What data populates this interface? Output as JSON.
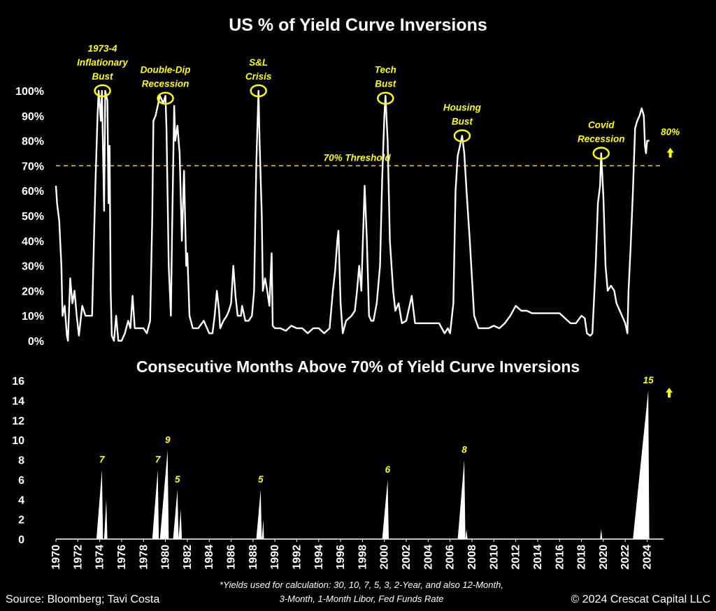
{
  "chart_data": [
    {
      "type": "line",
      "title": "US % of Yield Curve Inversions",
      "ylim": [
        0,
        100
      ],
      "yticks": [
        "0%",
        "10%",
        "20%",
        "30%",
        "40%",
        "50%",
        "60%",
        "70%",
        "80%",
        "90%",
        "100%"
      ],
      "xlim": [
        1970,
        2025.5
      ],
      "threshold": {
        "value": 70,
        "label": "70% Threshold"
      },
      "latest_label": "80%",
      "series": [
        {
          "color": "#ffffff",
          "points": [
            [
              1970.0,
              62
            ],
            [
              1970.1,
              55
            ],
            [
              1970.3,
              48
            ],
            [
              1970.5,
              30
            ],
            [
              1970.6,
              10
            ],
            [
              1970.8,
              14
            ],
            [
              1971.0,
              2
            ],
            [
              1971.1,
              0
            ],
            [
              1971.3,
              25
            ],
            [
              1971.5,
              15
            ],
            [
              1971.7,
              20
            ],
            [
              1971.9,
              10
            ],
            [
              1972.1,
              2
            ],
            [
              1972.4,
              14
            ],
            [
              1972.7,
              10
            ],
            [
              1973.0,
              10
            ],
            [
              1973.3,
              10
            ],
            [
              1973.5,
              45
            ],
            [
              1973.6,
              62
            ],
            [
              1973.8,
              90
            ],
            [
              1973.9,
              100
            ],
            [
              1974.1,
              88
            ],
            [
              1974.2,
              100
            ],
            [
              1974.4,
              52
            ],
            [
              1974.5,
              100
            ],
            [
              1974.7,
              96
            ],
            [
              1974.8,
              55
            ],
            [
              1974.9,
              78
            ],
            [
              1975.0,
              20
            ],
            [
              1975.1,
              2
            ],
            [
              1975.3,
              0
            ],
            [
              1975.5,
              10
            ],
            [
              1975.7,
              0
            ],
            [
              1976.0,
              0
            ],
            [
              1976.3,
              3
            ],
            [
              1976.6,
              8
            ],
            [
              1976.8,
              5
            ],
            [
              1977.0,
              18
            ],
            [
              1977.2,
              5
            ],
            [
              1977.5,
              5
            ],
            [
              1978.0,
              5
            ],
            [
              1978.3,
              3
            ],
            [
              1978.6,
              8
            ],
            [
              1978.8,
              50
            ],
            [
              1978.9,
              88
            ],
            [
              1979.1,
              90
            ],
            [
              1979.3,
              94
            ],
            [
              1979.5,
              98
            ],
            [
              1979.6,
              97
            ],
            [
              1979.8,
              95
            ],
            [
              1980.0,
              98
            ],
            [
              1980.1,
              85
            ],
            [
              1980.3,
              30
            ],
            [
              1980.5,
              10
            ],
            [
              1980.6,
              42
            ],
            [
              1980.8,
              94
            ],
            [
              1980.9,
              80
            ],
            [
              1981.1,
              86
            ],
            [
              1981.3,
              75
            ],
            [
              1981.5,
              40
            ],
            [
              1981.7,
              68
            ],
            [
              1981.9,
              30
            ],
            [
              1982.0,
              35
            ],
            [
              1982.2,
              10
            ],
            [
              1982.5,
              5
            ],
            [
              1983.0,
              5
            ],
            [
              1983.5,
              8
            ],
            [
              1984.0,
              3
            ],
            [
              1984.3,
              3
            ],
            [
              1984.5,
              10
            ],
            [
              1984.7,
              20
            ],
            [
              1984.9,
              12
            ],
            [
              1985.0,
              5
            ],
            [
              1985.3,
              8
            ],
            [
              1985.6,
              10
            ],
            [
              1985.8,
              12
            ],
            [
              1986.0,
              15
            ],
            [
              1986.2,
              30
            ],
            [
              1986.4,
              18
            ],
            [
              1986.6,
              10
            ],
            [
              1986.9,
              10
            ],
            [
              1987.0,
              14
            ],
            [
              1987.3,
              8
            ],
            [
              1987.6,
              8
            ],
            [
              1987.9,
              10
            ],
            [
              1988.1,
              20
            ],
            [
              1988.3,
              70
            ],
            [
              1988.5,
              100
            ],
            [
              1988.6,
              80
            ],
            [
              1988.8,
              50
            ],
            [
              1988.9,
              20
            ],
            [
              1989.1,
              25
            ],
            [
              1989.3,
              20
            ],
            [
              1989.5,
              14
            ],
            [
              1989.7,
              35
            ],
            [
              1989.8,
              6
            ],
            [
              1990.0,
              5
            ],
            [
              1990.5,
              5
            ],
            [
              1991.0,
              4
            ],
            [
              1991.5,
              6
            ],
            [
              1992.0,
              5
            ],
            [
              1992.5,
              5
            ],
            [
              1993.0,
              3
            ],
            [
              1993.5,
              5
            ],
            [
              1994.0,
              5
            ],
            [
              1994.5,
              3
            ],
            [
              1995.0,
              5
            ],
            [
              1995.3,
              20
            ],
            [
              1995.5,
              28
            ],
            [
              1995.7,
              40
            ],
            [
              1995.8,
              44
            ],
            [
              1996.0,
              15
            ],
            [
              1996.2,
              3
            ],
            [
              1996.5,
              8
            ],
            [
              1997.0,
              10
            ],
            [
              1997.3,
              12
            ],
            [
              1997.5,
              20
            ],
            [
              1997.7,
              30
            ],
            [
              1997.9,
              20
            ],
            [
              1998.0,
              35
            ],
            [
              1998.2,
              62
            ],
            [
              1998.4,
              40
            ],
            [
              1998.6,
              10
            ],
            [
              1998.8,
              8
            ],
            [
              1999.0,
              8
            ],
            [
              1999.3,
              15
            ],
            [
              1999.6,
              30
            ],
            [
              1999.8,
              65
            ],
            [
              2000.0,
              90
            ],
            [
              2000.1,
              98
            ],
            [
              2000.3,
              80
            ],
            [
              2000.5,
              40
            ],
            [
              2000.8,
              20
            ],
            [
              2001.0,
              12
            ],
            [
              2001.3,
              15
            ],
            [
              2001.6,
              7
            ],
            [
              2002.0,
              8
            ],
            [
              2002.5,
              18
            ],
            [
              2002.8,
              7
            ],
            [
              2003.0,
              7
            ],
            [
              2004.0,
              7
            ],
            [
              2005.0,
              7
            ],
            [
              2005.5,
              3
            ],
            [
              2005.8,
              5
            ],
            [
              2006.0,
              3
            ],
            [
              2006.3,
              15
            ],
            [
              2006.5,
              60
            ],
            [
              2006.7,
              74
            ],
            [
              2006.9,
              78
            ],
            [
              2007.1,
              82
            ],
            [
              2007.3,
              75
            ],
            [
              2007.5,
              60
            ],
            [
              2007.8,
              40
            ],
            [
              2008.0,
              25
            ],
            [
              2008.2,
              10
            ],
            [
              2008.6,
              5
            ],
            [
              2009.0,
              5
            ],
            [
              2009.5,
              5
            ],
            [
              2010.0,
              6
            ],
            [
              2010.5,
              5
            ],
            [
              2011.0,
              7
            ],
            [
              2011.5,
              10
            ],
            [
              2012.0,
              14
            ],
            [
              2012.5,
              12
            ],
            [
              2013.0,
              12
            ],
            [
              2013.5,
              11
            ],
            [
              2014.0,
              11
            ],
            [
              2014.5,
              11
            ],
            [
              2015.0,
              11
            ],
            [
              2015.5,
              11
            ],
            [
              2016.0,
              11
            ],
            [
              2016.5,
              9
            ],
            [
              2017.0,
              7
            ],
            [
              2017.5,
              7
            ],
            [
              2018.0,
              10
            ],
            [
              2018.3,
              9
            ],
            [
              2018.5,
              3
            ],
            [
              2018.8,
              2
            ],
            [
              2019.0,
              3
            ],
            [
              2019.3,
              30
            ],
            [
              2019.5,
              55
            ],
            [
              2019.7,
              62
            ],
            [
              2019.8,
              75
            ],
            [
              2020.0,
              58
            ],
            [
              2020.2,
              30
            ],
            [
              2020.4,
              20
            ],
            [
              2020.7,
              22
            ],
            [
              2021.0,
              20
            ],
            [
              2021.2,
              15
            ],
            [
              2021.5,
              12
            ],
            [
              2021.8,
              9
            ],
            [
              2022.0,
              7
            ],
            [
              2022.2,
              3
            ],
            [
              2022.3,
              20
            ],
            [
              2022.5,
              38
            ],
            [
              2022.7,
              60
            ],
            [
              2022.9,
              85
            ],
            [
              2023.1,
              88
            ],
            [
              2023.3,
              90
            ],
            [
              2023.5,
              93
            ],
            [
              2023.7,
              90
            ],
            [
              2023.8,
              78
            ],
            [
              2023.9,
              75
            ],
            [
              2024.0,
              80
            ],
            [
              2024.2,
              80
            ]
          ]
        }
      ],
      "annotations": [
        {
          "text_lines": [
            "1973-4",
            "Inflationary",
            "Bust"
          ],
          "x": 1974.25,
          "y": 100
        },
        {
          "text_lines": [
            "Double-Dip",
            "Recession"
          ],
          "x": 1980.0,
          "y": 97
        },
        {
          "text_lines": [
            "S&L",
            "Crisis"
          ],
          "x": 1988.5,
          "y": 100
        },
        {
          "text_lines": [
            "Tech",
            "Bust"
          ],
          "x": 2000.1,
          "y": 97
        },
        {
          "text_lines": [
            "Housing",
            "Bust"
          ],
          "x": 2007.1,
          "y": 82
        },
        {
          "text_lines": [
            "Covid",
            "Recession"
          ],
          "x": 2019.8,
          "y": 75
        }
      ]
    },
    {
      "type": "area",
      "title": "Consecutive Months Above 70% of Yield Curve Inversions",
      "ylim": [
        0,
        16
      ],
      "yticks": [
        "0",
        "2",
        "4",
        "6",
        "8",
        "10",
        "12",
        "14",
        "16"
      ],
      "xlim": [
        1970,
        2025.5
      ],
      "xticks": [
        "1970",
        "1972",
        "1974",
        "1976",
        "1978",
        "1980",
        "1982",
        "1984",
        "1986",
        "1988",
        "1990",
        "1992",
        "1994",
        "1996",
        "1998",
        "2000",
        "2002",
        "2004",
        "2006",
        "2008",
        "2010",
        "2012",
        "2014",
        "2016",
        "2018",
        "2020",
        "2022",
        "2024"
      ],
      "latest_arrow": true,
      "spikes": [
        {
          "x": [
            1973.7,
            1974.2,
            1974.3
          ],
          "peak": 7,
          "label": "7"
        },
        {
          "x": [
            1974.4,
            1974.6,
            1974.7
          ],
          "peak": 4,
          "label": ""
        },
        {
          "x": [
            1978.8,
            1979.3,
            1979.4
          ],
          "peak": 7,
          "label": "7"
        },
        {
          "x": [
            1979.5,
            1980.2,
            1980.3
          ],
          "peak": 9,
          "label": "9"
        },
        {
          "x": [
            1980.7,
            1981.1,
            1981.2
          ],
          "peak": 5,
          "label": "5"
        },
        {
          "x": [
            1981.2,
            1981.4,
            1981.5
          ],
          "peak": 3,
          "label": ""
        },
        {
          "x": [
            1988.3,
            1988.7,
            1988.8
          ],
          "peak": 5,
          "label": "5"
        },
        {
          "x": [
            1988.8,
            1988.95,
            1989.0
          ],
          "peak": 2,
          "label": ""
        },
        {
          "x": [
            1999.8,
            2000.3,
            2000.4
          ],
          "peak": 6,
          "label": "6"
        },
        {
          "x": [
            2006.7,
            2007.3,
            2007.4
          ],
          "peak": 8,
          "label": "8"
        },
        {
          "x": [
            2007.4,
            2007.5,
            2007.6
          ],
          "peak": 1,
          "label": ""
        },
        {
          "x": [
            2019.7,
            2019.8,
            2019.9
          ],
          "peak": 1,
          "label": ""
        },
        {
          "x": [
            2022.7,
            2024.1,
            2024.2
          ],
          "peak": 15,
          "label": "15"
        }
      ]
    }
  ],
  "footer": {
    "source": "Source: Bloomberg; Tavi Costa",
    "note_line1": "*Yields used for calculation: 30, 10, 7, 5, 3, 2-Year, and also 12-Month,",
    "note_line2": "3-Month, 1-Month Libor, Fed Funds Rate",
    "copyright": "© 2024 Crescat Capital LLC"
  },
  "colors": {
    "background": "#000000",
    "line": "#ffffff",
    "accent": "#ffff00"
  },
  "icons": [
    "up-arrow-icon"
  ]
}
